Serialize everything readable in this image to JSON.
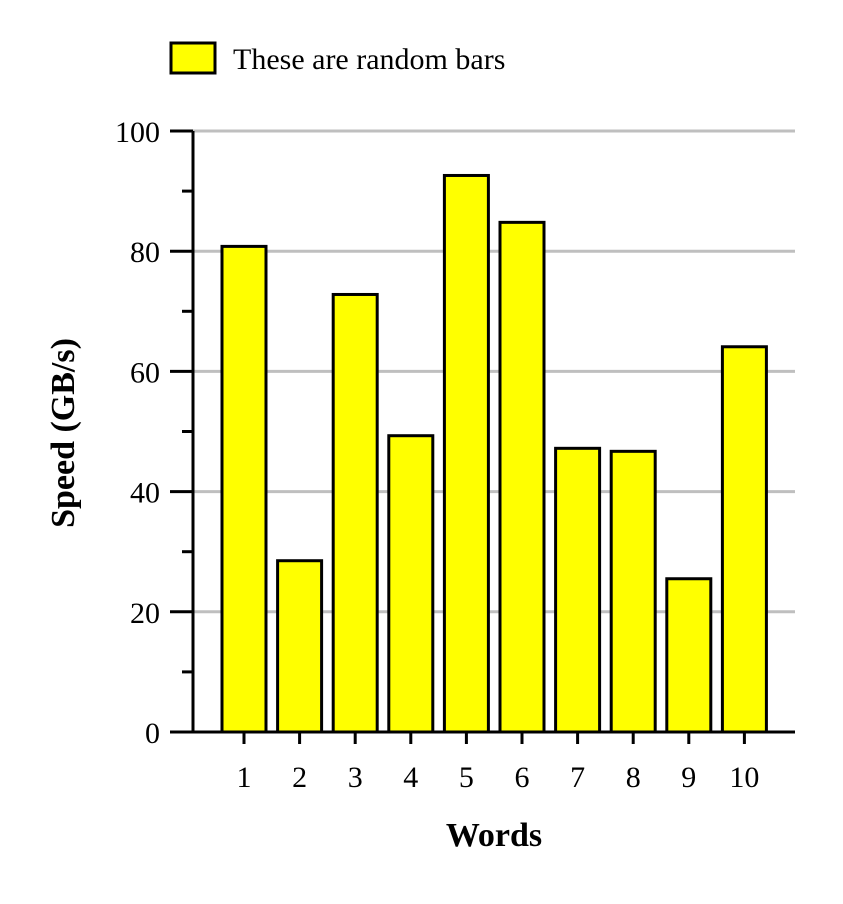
{
  "chart_data": {
    "type": "bar",
    "title": "",
    "xlabel": "Words",
    "ylabel": "Speed (GB/s)",
    "categories": [
      "1",
      "2",
      "3",
      "4",
      "5",
      "6",
      "7",
      "8",
      "9",
      "10"
    ],
    "series": [
      {
        "name": "These are random bars",
        "values": [
          80.8,
          28.5,
          72.8,
          49.3,
          92.6,
          84.8,
          47.2,
          46.7,
          25.5,
          64.1
        ]
      }
    ],
    "ylim": [
      0,
      100
    ],
    "yticks": [
      "0",
      "20",
      "40",
      "60",
      "80",
      "100"
    ],
    "grid": true,
    "legend_position": "top-left",
    "colors": {
      "bar_fill": "#ffff00",
      "bar_stroke": "#000000",
      "grid": "#bfbfbf",
      "axis": "#000000"
    }
  }
}
